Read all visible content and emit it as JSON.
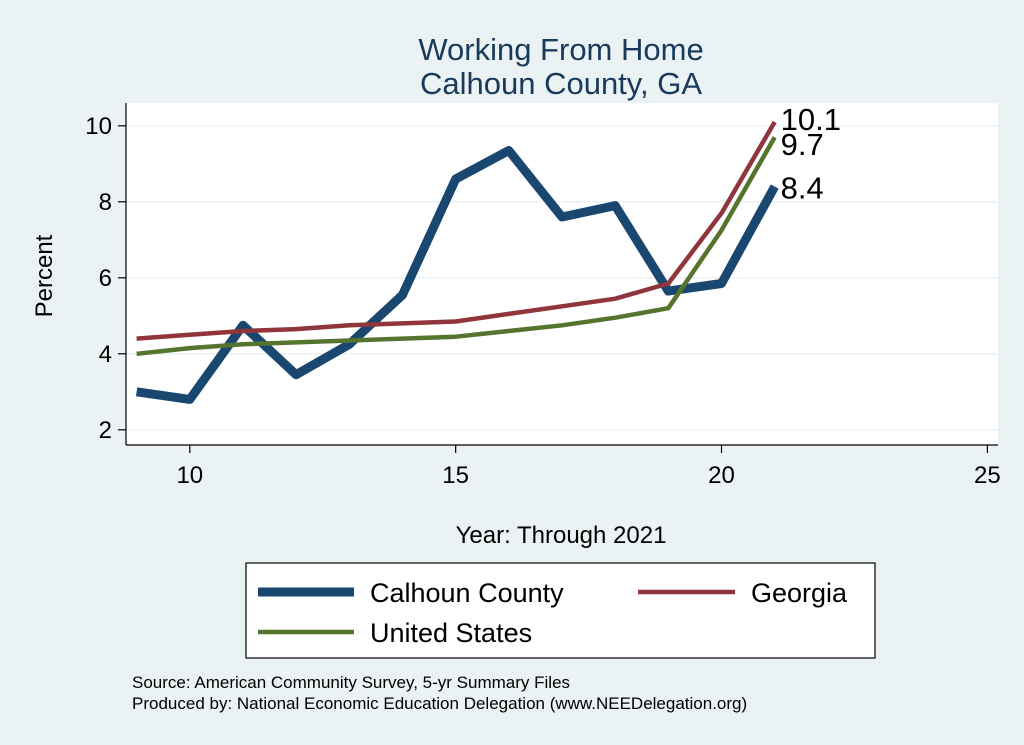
{
  "chart_data": {
    "type": "line",
    "title": [
      "Working From Home",
      "Calhoun County, GA"
    ],
    "xlabel": "Year: Through 2021",
    "ylabel": "Percent",
    "xlim": [
      8.8,
      25.2
    ],
    "ylim": [
      1.6,
      10.6
    ],
    "xticks": [
      10,
      15,
      20,
      25
    ],
    "yticks": [
      2,
      4,
      6,
      8,
      10
    ],
    "grid": true,
    "legend_position": "bottom",
    "series": [
      {
        "name": "Calhoun County",
        "color": "#1a476f",
        "width": 9,
        "x": [
          9,
          10,
          11,
          12,
          13,
          14,
          15,
          16,
          17,
          18,
          19,
          20,
          21
        ],
        "y": [
          3.0,
          2.8,
          4.75,
          3.45,
          4.25,
          5.55,
          8.6,
          9.35,
          7.6,
          7.9,
          5.65,
          5.85,
          8.4
        ],
        "end_label": "8.4"
      },
      {
        "name": "Georgia",
        "color": "#90353b",
        "width": 4.5,
        "x": [
          9,
          10,
          11,
          12,
          13,
          14,
          15,
          16,
          17,
          18,
          19,
          20,
          21
        ],
        "y": [
          4.4,
          4.5,
          4.6,
          4.65,
          4.75,
          4.8,
          4.85,
          5.05,
          5.25,
          5.45,
          5.85,
          7.7,
          10.1
        ],
        "end_label": "10.1"
      },
      {
        "name": "United States",
        "color": "#55752f",
        "width": 4.5,
        "x": [
          9,
          10,
          11,
          12,
          13,
          14,
          15,
          16,
          17,
          18,
          19,
          20,
          21
        ],
        "y": [
          4.0,
          4.15,
          4.25,
          4.3,
          4.35,
          4.4,
          4.45,
          4.6,
          4.75,
          4.95,
          5.2,
          7.25,
          9.7
        ],
        "end_label": "9.7"
      }
    ]
  },
  "footer": {
    "source": "Source: American Community Survey, 5-yr Summary Files",
    "produced": "Produced by: National Economic Education Delegation (www.NEEDelegation.org)"
  }
}
